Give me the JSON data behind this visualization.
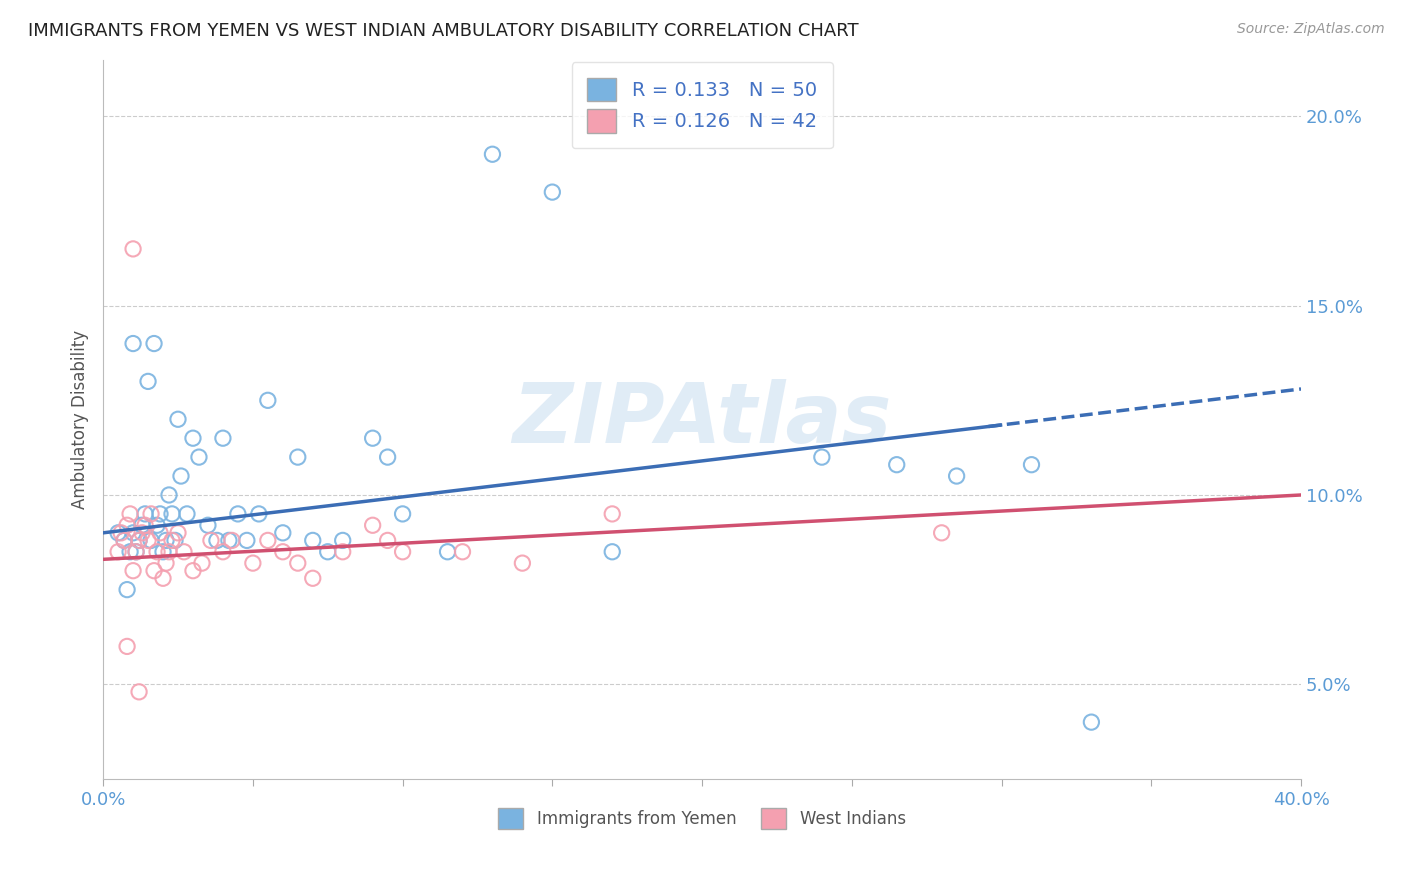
{
  "title": "IMMIGRANTS FROM YEMEN VS WEST INDIAN AMBULATORY DISABILITY CORRELATION CHART",
  "source": "Source: ZipAtlas.com",
  "ylabel": "Ambulatory Disability",
  "ytick_labels": [
    "5.0%",
    "10.0%",
    "15.0%",
    "20.0%"
  ],
  "ytick_values": [
    0.05,
    0.1,
    0.15,
    0.2
  ],
  "xlim": [
    0.0,
    0.4
  ],
  "ylim": [
    0.025,
    0.215
  ],
  "r_yemen": 0.133,
  "n_yemen": 50,
  "r_westindian": 0.126,
  "n_westindian": 42,
  "color_yemen": "#7ab3e0",
  "color_westindian": "#f4a0b0",
  "color_line_yemen": "#3b6db5",
  "color_line_westindian": "#d05070",
  "legend_label_yemen": "Immigrants from Yemen",
  "legend_label_westindian": "West Indians",
  "watermark": "ZIPAtlas",
  "scatter_yemen_x": [
    0.005,
    0.007,
    0.008,
    0.009,
    0.01,
    0.01,
    0.011,
    0.012,
    0.013,
    0.014,
    0.015,
    0.016,
    0.017,
    0.018,
    0.019,
    0.02,
    0.021,
    0.022,
    0.023,
    0.024,
    0.025,
    0.026,
    0.028,
    0.03,
    0.032,
    0.035,
    0.038,
    0.04,
    0.042,
    0.045,
    0.048,
    0.052,
    0.055,
    0.06,
    0.065,
    0.07,
    0.075,
    0.08,
    0.09,
    0.095,
    0.1,
    0.115,
    0.13,
    0.15,
    0.17,
    0.24,
    0.265,
    0.285,
    0.31,
    0.33
  ],
  "scatter_yemen_y": [
    0.09,
    0.088,
    0.075,
    0.085,
    0.14,
    0.09,
    0.085,
    0.088,
    0.092,
    0.095,
    0.13,
    0.088,
    0.14,
    0.092,
    0.095,
    0.085,
    0.088,
    0.1,
    0.095,
    0.088,
    0.12,
    0.105,
    0.095,
    0.115,
    0.11,
    0.092,
    0.088,
    0.115,
    0.088,
    0.095,
    0.088,
    0.095,
    0.125,
    0.09,
    0.11,
    0.088,
    0.085,
    0.088,
    0.115,
    0.11,
    0.095,
    0.085,
    0.19,
    0.18,
    0.085,
    0.11,
    0.108,
    0.105,
    0.108,
    0.04
  ],
  "scatter_wi_x": [
    0.005,
    0.006,
    0.007,
    0.008,
    0.009,
    0.01,
    0.01,
    0.011,
    0.012,
    0.013,
    0.014,
    0.015,
    0.016,
    0.017,
    0.018,
    0.019,
    0.02,
    0.021,
    0.022,
    0.023,
    0.025,
    0.027,
    0.03,
    0.033,
    0.036,
    0.04,
    0.043,
    0.05,
    0.055,
    0.06,
    0.065,
    0.07,
    0.08,
    0.09,
    0.095,
    0.1,
    0.12,
    0.14,
    0.17,
    0.28,
    0.008,
    0.012
  ],
  "scatter_wi_y": [
    0.085,
    0.09,
    0.088,
    0.092,
    0.095,
    0.165,
    0.08,
    0.085,
    0.088,
    0.09,
    0.092,
    0.088,
    0.095,
    0.08,
    0.085,
    0.09,
    0.078,
    0.082,
    0.085,
    0.088,
    0.09,
    0.085,
    0.08,
    0.082,
    0.088,
    0.085,
    0.088,
    0.082,
    0.088,
    0.085,
    0.082,
    0.078,
    0.085,
    0.092,
    0.088,
    0.085,
    0.085,
    0.082,
    0.095,
    0.09,
    0.06,
    0.048
  ],
  "background_color": "#ffffff",
  "grid_color": "#cccccc",
  "trendline_yemen_x0": 0.0,
  "trendline_yemen_y0": 0.09,
  "trendline_yemen_x1": 0.4,
  "trendline_yemen_y1": 0.128,
  "trendline_wi_x0": 0.0,
  "trendline_wi_y0": 0.083,
  "trendline_wi_x1": 0.4,
  "trendline_wi_y1": 0.1,
  "trendline_solid_end": 0.3,
  "trendline_dash_start": 0.295
}
